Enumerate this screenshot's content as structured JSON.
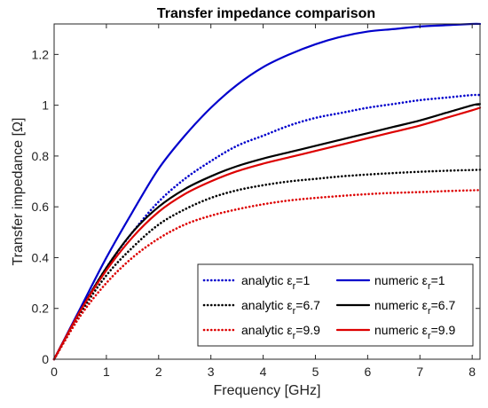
{
  "chart_data": {
    "type": "line",
    "title": "Transfer impedance comparison",
    "xlabel": "Frequency [GHz]",
    "ylabel": "Transfer impedance [Ω]",
    "xlim": [
      0,
      8.15
    ],
    "ylim": [
      0,
      1.32
    ],
    "xticks": [
      0,
      1,
      2,
      3,
      4,
      5,
      6,
      7,
      8
    ],
    "xtick_labels": [
      "0",
      "1",
      "2",
      "3",
      "4",
      "5",
      "6",
      "7",
      "8"
    ],
    "yticks": [
      0,
      0.2,
      0.4,
      0.6,
      0.8,
      1,
      1.2
    ],
    "ytick_labels": [
      "0",
      "0.2",
      "0.4",
      "0.6",
      "0.8",
      "1",
      "1.2"
    ],
    "grid": false,
    "legend_position": "bottom-right",
    "legend_columns": 2,
    "series": [
      {
        "name_prefix": "analytic ε",
        "name_subscript": "r",
        "name_suffix": "=1",
        "color": "#0000cc",
        "style": "dotted",
        "x": [
          0,
          0.5,
          1,
          1.5,
          2,
          2.5,
          3,
          3.5,
          4,
          4.5,
          5,
          5.5,
          6,
          6.5,
          7,
          7.5,
          8,
          8.15
        ],
        "y": [
          0,
          0.19,
          0.36,
          0.5,
          0.62,
          0.71,
          0.78,
          0.84,
          0.88,
          0.92,
          0.95,
          0.97,
          0.99,
          1.005,
          1.02,
          1.03,
          1.04,
          1.04
        ]
      },
      {
        "name_prefix": "analytic ε",
        "name_subscript": "r",
        "name_suffix": "=6.7",
        "color": "#000000",
        "style": "dotted",
        "x": [
          0,
          0.5,
          1,
          1.5,
          2,
          2.5,
          3,
          3.5,
          4,
          4.5,
          5,
          5.5,
          6,
          6.5,
          7,
          7.5,
          8,
          8.15
        ],
        "y": [
          0,
          0.18,
          0.33,
          0.44,
          0.53,
          0.59,
          0.635,
          0.665,
          0.685,
          0.7,
          0.71,
          0.72,
          0.727,
          0.733,
          0.738,
          0.742,
          0.745,
          0.746
        ]
      },
      {
        "name_prefix": "analytic ε",
        "name_subscript": "r",
        "name_suffix": "=9.9",
        "color": "#dd0000",
        "style": "dotted",
        "x": [
          0,
          0.5,
          1,
          1.5,
          2,
          2.5,
          3,
          3.5,
          4,
          4.5,
          5,
          5.5,
          6,
          6.5,
          7,
          7.5,
          8,
          8.15
        ],
        "y": [
          0,
          0.17,
          0.3,
          0.4,
          0.475,
          0.53,
          0.565,
          0.59,
          0.61,
          0.625,
          0.635,
          0.643,
          0.65,
          0.655,
          0.658,
          0.662,
          0.665,
          0.666
        ]
      },
      {
        "name_prefix": "numeric ε",
        "name_subscript": "r",
        "name_suffix": "=1",
        "color": "#0000cc",
        "style": "solid",
        "x": [
          0,
          0.5,
          1,
          1.5,
          2,
          2.5,
          3,
          3.5,
          4,
          4.5,
          5,
          5.5,
          6,
          6.5,
          7,
          7.5,
          8,
          8.15
        ],
        "y": [
          0,
          0.2,
          0.4,
          0.58,
          0.75,
          0.88,
          0.99,
          1.08,
          1.15,
          1.2,
          1.24,
          1.27,
          1.29,
          1.3,
          1.31,
          1.315,
          1.32,
          1.32
        ]
      },
      {
        "name_prefix": "numeric ε",
        "name_subscript": "r",
        "name_suffix": "=6.7",
        "color": "#000000",
        "style": "solid",
        "x": [
          0,
          0.5,
          1,
          1.5,
          2,
          2.5,
          3,
          3.5,
          4,
          4.5,
          5,
          5.5,
          6,
          6.5,
          7,
          7.5,
          8,
          8.15
        ],
        "y": [
          0,
          0.19,
          0.36,
          0.5,
          0.6,
          0.67,
          0.72,
          0.76,
          0.79,
          0.815,
          0.84,
          0.865,
          0.89,
          0.915,
          0.94,
          0.97,
          1.0,
          1.005
        ]
      },
      {
        "name_prefix": "numeric ε",
        "name_subscript": "r",
        "name_suffix": "=9.9",
        "color": "#dd0000",
        "style": "solid",
        "x": [
          0,
          0.5,
          1,
          1.5,
          2,
          2.5,
          3,
          3.5,
          4,
          4.5,
          5,
          5.5,
          6,
          6.5,
          7,
          7.5,
          8,
          8.15
        ],
        "y": [
          0,
          0.19,
          0.35,
          0.48,
          0.58,
          0.65,
          0.7,
          0.74,
          0.77,
          0.795,
          0.82,
          0.845,
          0.87,
          0.895,
          0.92,
          0.95,
          0.98,
          0.99
        ]
      }
    ]
  }
}
